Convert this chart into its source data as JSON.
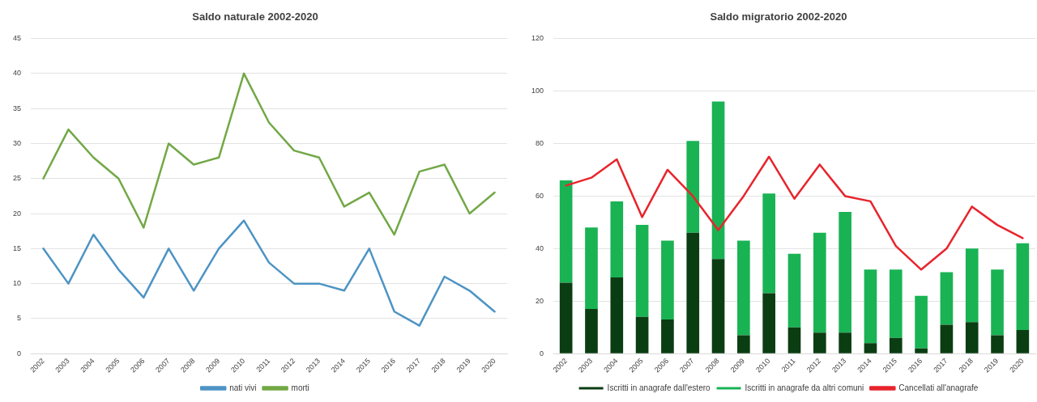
{
  "chart_data": [
    {
      "type": "line",
      "title": "Saldo naturale 2002-2020",
      "categories": [
        "2002",
        "2003",
        "2004",
        "2005",
        "2006",
        "2007",
        "2008",
        "2009",
        "2010",
        "2011",
        "2012",
        "2013",
        "2014",
        "2015",
        "2016",
        "2017",
        "2018",
        "2019",
        "2020"
      ],
      "series": [
        {
          "name": "nati vivi",
          "color": "#4d94c4",
          "values": [
            15,
            10,
            17,
            12,
            8,
            15,
            9,
            15,
            19,
            13,
            10,
            10,
            9,
            15,
            6,
            4,
            11,
            9,
            6
          ]
        },
        {
          "name": "morti",
          "color": "#72a846",
          "values": [
            25,
            32,
            28,
            25,
            18,
            30,
            27,
            28,
            40,
            33,
            29,
            28,
            21,
            23,
            17,
            26,
            27,
            20,
            23
          ]
        }
      ],
      "ylim": [
        0,
        45
      ],
      "yticks": [
        0,
        5,
        10,
        15,
        20,
        25,
        30,
        35,
        40,
        45
      ],
      "grid": "y",
      "legend": "bottom",
      "marker": "none",
      "line_style": "solid"
    },
    {
      "type": "bar",
      "title": "Saldo migratorio 2002-2020",
      "categories": [
        "2002",
        "2003",
        "2004",
        "2005",
        "2006",
        "2007",
        "2008",
        "2009",
        "2010",
        "2011",
        "2012",
        "2013",
        "2014",
        "2015",
        "2016",
        "2017",
        "2018",
        "2019",
        "2020"
      ],
      "series": [
        {
          "name": "Iscritti in anagrafe dall'estero",
          "color": "#0b3d12",
          "values": [
            27,
            17,
            29,
            14,
            13,
            46,
            36,
            7,
            23,
            10,
            8,
            8,
            4,
            6,
            2,
            11,
            12,
            7,
            9
          ]
        },
        {
          "name": "Iscritti in anagrafe da altri comuni",
          "color": "#19b354",
          "values": [
            39,
            31,
            29,
            35,
            30,
            35,
            60,
            36,
            38,
            28,
            38,
            46,
            28,
            26,
            20,
            20,
            28,
            25,
            33
          ]
        },
        {
          "name": "Cancellati all'anagrafe",
          "type": "line",
          "color": "#e8242c",
          "values": [
            64,
            67,
            74,
            52,
            70,
            60,
            47,
            60,
            75,
            59,
            72,
            60,
            58,
            41,
            32,
            40,
            56,
            49,
            44
          ]
        }
      ],
      "stacked": true,
      "ylim": [
        0,
        120
      ],
      "yticks": [
        0,
        20,
        40,
        60,
        80,
        100,
        120
      ],
      "grid": "y",
      "legend": "bottom",
      "marker": "none",
      "line_style": "solid"
    }
  ]
}
